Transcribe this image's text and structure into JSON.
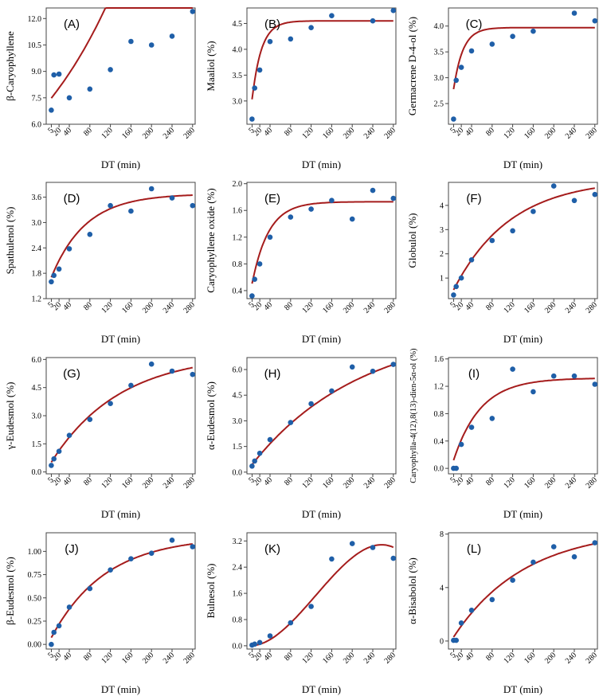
{
  "figure": {
    "point_color": "#1f5fa8",
    "curve_color": "#a51c1c"
  },
  "chart_data": [
    {
      "type": "scatter",
      "panel": "(A)",
      "ylabel": "β-Caryophyllene",
      "xlabel": "DT (min)",
      "xticks": [
        5,
        20,
        40,
        80,
        120,
        160,
        200,
        240,
        280
      ],
      "yticks": [
        6.0,
        7.5,
        9.0,
        10.5,
        12.0
      ],
      "ylim": [
        6.0,
        12.6
      ],
      "x": [
        5,
        10,
        20,
        40,
        80,
        120,
        160,
        200,
        240,
        280
      ],
      "y": [
        6.8,
        8.8,
        8.85,
        7.5,
        8.0,
        9.1,
        10.7,
        10.5,
        11.0,
        12.4
      ],
      "fit": {
        "kind": "exp",
        "params": [
          7.3,
          0.00495
        ]
      }
    },
    {
      "type": "scatter",
      "panel": "(B)",
      "ylabel": "Maaliol (%)",
      "xlabel": "DT (min)",
      "xticks": [
        5,
        20,
        40,
        80,
        120,
        160,
        200,
        240,
        280
      ],
      "yticks": [
        3.0,
        3.5,
        4.0,
        4.5
      ],
      "ylim": [
        2.55,
        4.8
      ],
      "x": [
        5,
        10,
        20,
        40,
        80,
        120,
        160,
        240,
        280
      ],
      "y": [
        2.65,
        3.25,
        3.6,
        4.15,
        4.2,
        4.42,
        4.65,
        4.55,
        4.75
      ],
      "fit": {
        "kind": "rise",
        "params": [
          2.55,
          4.55,
          0.055
        ]
      }
    },
    {
      "type": "scatter",
      "panel": "(C)",
      "ylabel": "Germacrene D-4-ol (%)",
      "xlabel": "DT (min)",
      "xticks": [
        5,
        20,
        40,
        80,
        120,
        160,
        200,
        240,
        280
      ],
      "yticks": [
        2.5,
        3.0,
        3.5,
        4.0
      ],
      "ylim": [
        2.1,
        4.35
      ],
      "x": [
        5,
        10,
        20,
        40,
        80,
        120,
        160,
        240,
        280
      ],
      "y": [
        2.2,
        2.95,
        3.2,
        3.52,
        3.65,
        3.8,
        3.9,
        4.25,
        4.1
      ],
      "fit": {
        "kind": "rise",
        "params": [
          2.4,
          3.97,
          0.055
        ]
      }
    },
    {
      "type": "scatter",
      "panel": "(D)",
      "ylabel": "Spathulenol (%)",
      "xlabel": "DT (min)",
      "xticks": [
        5,
        20,
        40,
        80,
        120,
        160,
        200,
        240,
        280
      ],
      "yticks": [
        1.2,
        1.8,
        2.4,
        3.0,
        3.6
      ],
      "ylim": [
        1.2,
        3.95
      ],
      "x": [
        5,
        10,
        20,
        40,
        80,
        120,
        160,
        200,
        240,
        280
      ],
      "y": [
        1.6,
        1.75,
        1.9,
        2.38,
        2.72,
        3.4,
        3.27,
        3.8,
        3.58,
        3.4
      ],
      "fit": {
        "kind": "rise",
        "params": [
          1.55,
          3.68,
          0.015
        ]
      }
    },
    {
      "type": "scatter",
      "panel": "(E)",
      "ylabel": "Caryophyllene oxide (%)",
      "xlabel": "DT (min)",
      "xticks": [
        5,
        20,
        40,
        80,
        120,
        160,
        200,
        240,
        280
      ],
      "yticks": [
        0.4,
        0.8,
        1.2,
        1.6,
        2.0
      ],
      "ylim": [
        0.28,
        2.02
      ],
      "x": [
        5,
        10,
        20,
        40,
        80,
        120,
        160,
        200,
        240,
        280
      ],
      "y": [
        0.32,
        0.57,
        0.8,
        1.2,
        1.5,
        1.62,
        1.75,
        1.47,
        1.9,
        1.78
      ],
      "fit": {
        "kind": "rise",
        "params": [
          0.3,
          1.73,
          0.031
        ]
      }
    },
    {
      "type": "scatter",
      "panel": "(F)",
      "ylabel": "Globulol (%)",
      "xlabel": "DT (min)",
      "xticks": [
        5,
        20,
        40,
        80,
        120,
        160,
        200,
        240,
        280
      ],
      "yticks": [
        1,
        2,
        3,
        4
      ],
      "ylim": [
        0.15,
        4.95
      ],
      "x": [
        5,
        10,
        20,
        40,
        80,
        120,
        160,
        200,
        240,
        280
      ],
      "y": [
        0.3,
        0.65,
        1.0,
        1.75,
        2.55,
        2.95,
        3.75,
        4.8,
        4.2,
        4.45
      ],
      "fit": {
        "kind": "rise",
        "params": [
          0.3,
          5.1,
          0.009
        ]
      }
    },
    {
      "type": "scatter",
      "panel": "(G)",
      "ylabel": "γ-Eudesmol (%)",
      "xlabel": "DT (min)",
      "xticks": [
        5,
        20,
        40,
        80,
        120,
        160,
        200,
        240,
        280
      ],
      "yticks": [
        0.0,
        1.5,
        3.0,
        4.5,
        6.0
      ],
      "ylim": [
        -0.1,
        6.1
      ],
      "x": [
        5,
        10,
        20,
        40,
        80,
        120,
        160,
        200,
        240,
        280
      ],
      "y": [
        0.35,
        0.7,
        1.1,
        1.95,
        2.8,
        3.65,
        4.62,
        5.75,
        5.38,
        5.2
      ],
      "fit": {
        "kind": "rise",
        "params": [
          0.3,
          6.3,
          0.0075
        ]
      }
    },
    {
      "type": "scatter",
      "panel": "(H)",
      "ylabel": "α-Eudesmol (%)",
      "xlabel": "DT (min)",
      "xticks": [
        5,
        20,
        40,
        80,
        120,
        160,
        200,
        240,
        280
      ],
      "yticks": [
        0.0,
        1.5,
        3.0,
        4.5,
        6.0
      ],
      "ylim": [
        -0.1,
        6.7
      ],
      "x": [
        5,
        10,
        20,
        40,
        80,
        120,
        160,
        200,
        240,
        280
      ],
      "y": [
        0.35,
        0.65,
        1.1,
        1.9,
        2.9,
        4.0,
        4.75,
        6.15,
        5.9,
        6.3
      ],
      "fit": {
        "kind": "rise",
        "params": [
          0.25,
          8.5,
          0.0047
        ]
      }
    },
    {
      "type": "scatter",
      "panel": "(I)",
      "ylabel": "Caryophylla-4(12),8(13)-dien-5α-ol (%)",
      "xlabel": "DT (min)",
      "xticks": [
        5,
        20,
        40,
        80,
        120,
        160,
        200,
        240,
        280
      ],
      "yticks": [
        0.0,
        0.4,
        0.8,
        1.2,
        1.6
      ],
      "ylim": [
        -0.08,
        1.62
      ],
      "x": [
        5,
        10,
        20,
        40,
        80,
        120,
        160,
        200,
        240,
        280
      ],
      "y": [
        0.0,
        0.0,
        0.35,
        0.6,
        0.73,
        1.45,
        1.12,
        1.35,
        1.35,
        1.23
      ],
      "fit": {
        "kind": "rise",
        "params": [
          0.0,
          1.32,
          0.019
        ]
      }
    },
    {
      "type": "scatter",
      "panel": "(J)",
      "ylabel": "β-Eudesmol (%)",
      "xlabel": "DT (min)",
      "xticks": [
        5,
        20,
        40,
        80,
        120,
        160,
        200,
        240,
        280
      ],
      "yticks": [
        0.0,
        0.25,
        0.5,
        0.75,
        1.0
      ],
      "ylim": [
        -0.05,
        1.2
      ],
      "x": [
        5,
        10,
        20,
        40,
        80,
        120,
        160,
        200,
        240,
        280
      ],
      "y": [
        0.0,
        0.13,
        0.2,
        0.4,
        0.6,
        0.8,
        0.92,
        0.98,
        1.12,
        1.05
      ],
      "fit": {
        "kind": "rise",
        "params": [
          0.02,
          1.16,
          0.0095
        ]
      }
    },
    {
      "type": "scatter",
      "panel": "(K)",
      "ylabel": "Bulnesol (%)",
      "xlabel": "DT (min)",
      "xticks": [
        5,
        20,
        40,
        80,
        120,
        160,
        200,
        240,
        280
      ],
      "yticks": [
        0.0,
        0.8,
        1.6,
        2.4,
        3.2
      ],
      "ylim": [
        -0.1,
        3.45
      ],
      "x": [
        5,
        10,
        20,
        40,
        80,
        120,
        160,
        200,
        240,
        280
      ],
      "y": [
        0.02,
        0.05,
        0.1,
        0.3,
        0.7,
        1.2,
        2.65,
        3.12,
        3.0,
        2.67
      ],
      "fit": {
        "kind": "cubic",
        "params": [
          0.0,
          -0.00037,
          0.0001427,
          -3.68e-07
        ]
      }
    },
    {
      "type": "scatter",
      "panel": "(L)",
      "ylabel": "α-Bisabolol (%)",
      "xlabel": "DT (min)",
      "xticks": [
        5,
        20,
        40,
        80,
        120,
        160,
        200,
        240,
        280
      ],
      "yticks": [
        0,
        4,
        8
      ],
      "ylim": [
        -0.6,
        8.1
      ],
      "x": [
        5,
        10,
        20,
        40,
        80,
        120,
        160,
        200,
        240,
        280
      ],
      "y": [
        0.05,
        0.05,
        1.35,
        2.3,
        3.1,
        4.55,
        5.9,
        7.05,
        6.3,
        7.35
      ],
      "fit": {
        "kind": "rise",
        "params": [
          0.0,
          8.4,
          0.0072
        ]
      }
    }
  ]
}
